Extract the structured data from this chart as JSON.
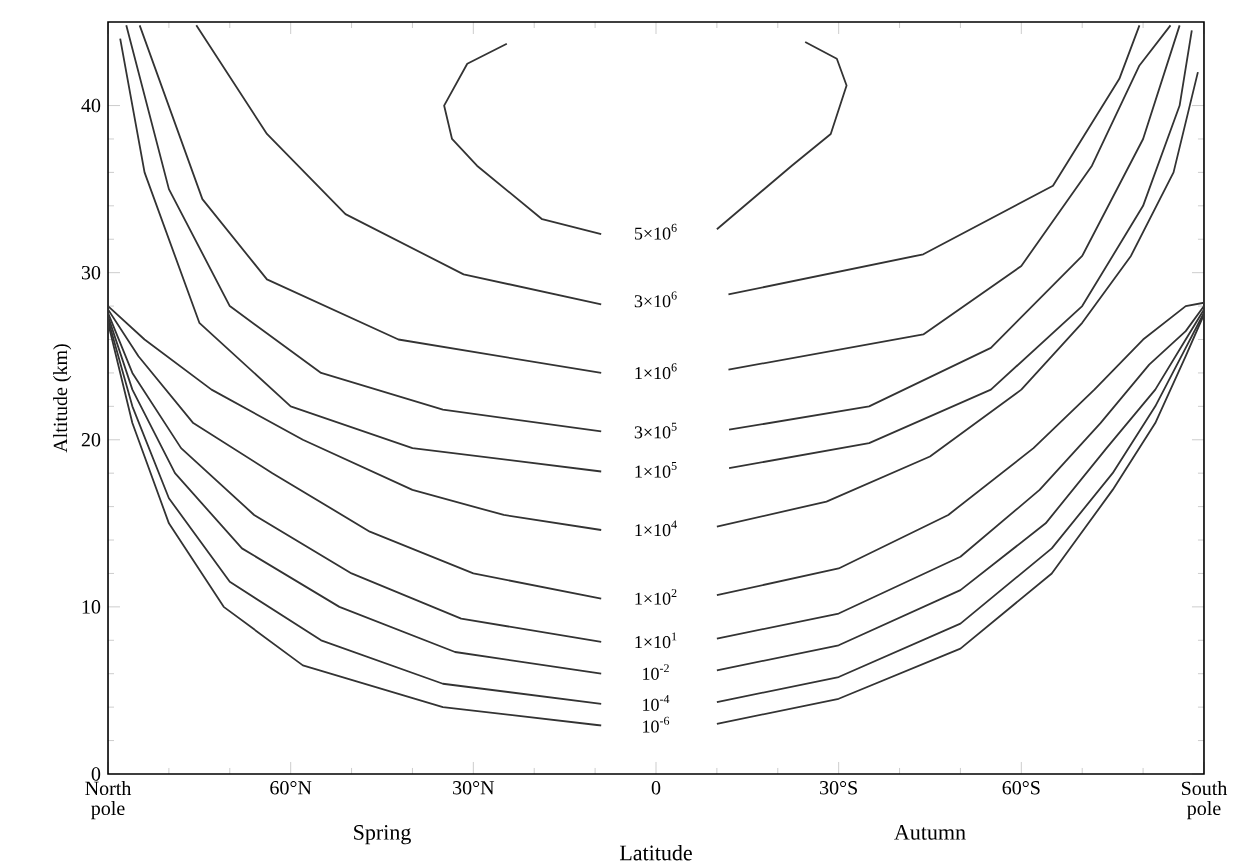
{
  "chart_data": {
    "type": "line",
    "xlabel": "Latitude",
    "ylabel": "Altitude (km)",
    "xlim": [
      -90,
      90
    ],
    "ylim": [
      0,
      45
    ],
    "xticks": [
      {
        "value": -90,
        "label": "North pole"
      },
      {
        "value": -60,
        "label": "60°N"
      },
      {
        "value": -30,
        "label": "30°N"
      },
      0,
      {
        "value": 30,
        "label": "30°S"
      },
      {
        "value": 60,
        "label": "60°S"
      },
      {
        "value": 90,
        "label": "South pole"
      }
    ],
    "yticks": [
      0,
      10,
      20,
      30,
      40
    ],
    "annotations": [
      "Spring",
      "Autumn"
    ],
    "series": [
      {
        "name": "5×10$^{6}$",
        "color": "#333333",
        "x": [
          -24.5,
          -31,
          -34.8,
          -33.5,
          -29.4,
          -18.7,
          -9,
          0,
          10,
          22.3,
          28.7,
          31.3,
          29.7,
          24.5
        ],
        "values": [
          43.7,
          42.5,
          40,
          38,
          36.4,
          33.2,
          32.3,
          null,
          32.6,
          36.4,
          38.3,
          41.2,
          42.8,
          43.8
        ]
      },
      {
        "name": "3×10$^{6}$",
        "color": "#333333",
        "x": [
          -75.5,
          -63.9,
          -51,
          -31.6,
          -9,
          0,
          11.9,
          43.9,
          65.2,
          76.1,
          79.4
        ],
        "values": [
          44.8,
          38.3,
          33.5,
          29.9,
          28.1,
          null,
          28.7,
          31.1,
          35.2,
          41.6,
          44.8
        ]
      },
      {
        "name": "1×10$^{6}$",
        "color": "#333333",
        "x": [
          -84.8,
          -74.5,
          -63.9,
          -42.3,
          -9,
          0,
          11.9,
          43.9,
          60,
          71.6,
          79.4,
          84.5
        ],
        "values": [
          44.8,
          34.4,
          29.6,
          26,
          24,
          null,
          24.2,
          26.3,
          30.4,
          36.4,
          42.4,
          44.8
        ]
      },
      {
        "name": "3×10$^{5}$",
        "color": "#333333",
        "x": [
          -87,
          -80,
          -70,
          -55,
          -35,
          -9,
          0,
          12,
          35,
          55,
          70,
          80,
          86
        ],
        "values": [
          44.8,
          35,
          28,
          24,
          21.8,
          20.5,
          null,
          20.6,
          22,
          25.5,
          31,
          38,
          44.8
        ]
      },
      {
        "name": "1×10$^{5}$",
        "color": "#333333",
        "x": [
          -88,
          -84,
          -75,
          -60,
          -40,
          -9,
          0,
          12,
          35,
          55,
          70,
          80,
          86,
          88
        ],
        "values": [
          44,
          36,
          27,
          22,
          19.5,
          18.1,
          null,
          18.3,
          19.8,
          23,
          28,
          34,
          40,
          44.5
        ]
      },
      {
        "name": "1×10$^{4}$",
        "color": "#333333",
        "x": [
          -90,
          -84,
          -73,
          -58,
          -40,
          -25,
          -9,
          0,
          10,
          28,
          45,
          60,
          70,
          78,
          85,
          89
        ],
        "values": [
          28,
          26,
          23,
          20,
          17,
          15.5,
          14.6,
          null,
          14.8,
          16.3,
          19,
          23,
          27,
          31,
          36,
          42
        ]
      },
      {
        "name": "1×10$^{2}$",
        "color": "#333333",
        "x": [
          -90,
          -85,
          -76,
          -63,
          -47,
          -30,
          -9,
          0,
          10,
          30,
          48,
          62,
          72,
          80,
          87,
          90
        ],
        "values": [
          27.8,
          25,
          21,
          18,
          14.5,
          12,
          10.5,
          null,
          10.7,
          12.3,
          15.5,
          19.5,
          23,
          26,
          28,
          28.2
        ]
      },
      {
        "name": "1×10$^{1}$",
        "color": "#333333",
        "x": [
          -90,
          -86,
          -78,
          -66,
          -50,
          -32,
          -9,
          0,
          10,
          30,
          50,
          63,
          73,
          81,
          87,
          90
        ],
        "values": [
          27.6,
          24,
          19.5,
          15.5,
          12,
          9.3,
          7.9,
          null,
          8.1,
          9.6,
          13,
          17,
          21,
          24.5,
          26.5,
          28
        ]
      },
      {
        "name": "10$^{-2}$",
        "color": "#333333",
        "x": [
          -90,
          -86,
          -79,
          -68,
          -52,
          -33,
          -9,
          0,
          10,
          30,
          50,
          64,
          74,
          82,
          87,
          90
        ],
        "values": [
          27.4,
          23,
          18,
          13.5,
          10,
          7.3,
          6,
          null,
          6.2,
          7.7,
          11,
          15,
          19.5,
          23,
          26,
          27.8
        ]
      },
      {
        "name": "10$^{-4}$",
        "color": "#333333",
        "x": [
          -90,
          -86,
          -80,
          -70,
          -55,
          -35,
          -9,
          0,
          10,
          30,
          50,
          65,
          75,
          82,
          87,
          90
        ],
        "values": [
          27.2,
          22,
          16.5,
          11.5,
          8,
          5.4,
          4.2,
          null,
          4.3,
          5.8,
          9,
          13.5,
          18,
          22,
          25.5,
          27.6
        ]
      },
      {
        "name": "10$^{-6}$",
        "color": "#333333",
        "x": [
          -90,
          -86,
          -80,
          -71,
          -58,
          -35,
          -9,
          0,
          10,
          30,
          50,
          65,
          75,
          82,
          87,
          90
        ],
        "values": [
          27,
          21,
          15,
          10,
          6.5,
          4,
          2.9,
          null,
          3,
          4.5,
          7.5,
          12,
          17,
          21,
          25,
          27.5
        ]
      }
    ]
  }
}
